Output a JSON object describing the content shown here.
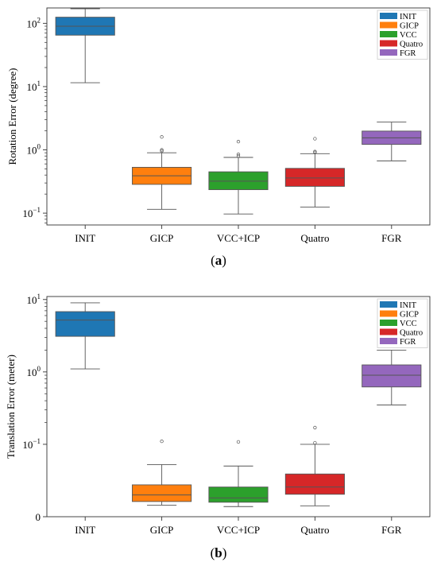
{
  "chart_data": [
    {
      "type": "box",
      "panel_label": "a",
      "ylabel": "Rotation Error (degree)",
      "yscale": "log",
      "ylim": [
        0.065,
        175
      ],
      "y_ticks": [
        {
          "value": 0.1,
          "base": "10",
          "exp": "−1"
        },
        {
          "value": 1,
          "base": "10",
          "exp": "0"
        },
        {
          "value": 10,
          "base": "10",
          "exp": "1"
        },
        {
          "value": 100,
          "base": "10",
          "exp": "2"
        }
      ],
      "legend_position": "top-right",
      "legend": [
        "INIT",
        "GICP",
        "VCC",
        "Quatro",
        "FGR"
      ],
      "categories": [
        "INIT",
        "GICP",
        "VCC+ICP",
        "Quatro",
        "FGR"
      ],
      "colors": [
        "#1f77b4",
        "#ff7f0e",
        "#2ca02c",
        "#d62728",
        "#9467bd"
      ],
      "boxes": [
        {
          "whisker_low": 11.5,
          "q1": 65,
          "median": 90,
          "q3": 125,
          "whisker_high": 170,
          "outliers": []
        },
        {
          "whisker_low": 0.115,
          "q1": 0.285,
          "median": 0.39,
          "q3": 0.53,
          "whisker_high": 0.9,
          "outliers": [
            1.0,
            0.96,
            1.6
          ]
        },
        {
          "whisker_low": 0.097,
          "q1": 0.235,
          "median": 0.32,
          "q3": 0.45,
          "whisker_high": 0.76,
          "outliers": [
            0.8,
            0.85,
            1.35
          ]
        },
        {
          "whisker_low": 0.125,
          "q1": 0.265,
          "median": 0.36,
          "q3": 0.51,
          "whisker_high": 0.87,
          "outliers": [
            0.91,
            0.94,
            1.5
          ]
        },
        {
          "whisker_low": 0.67,
          "q1": 1.22,
          "median": 1.55,
          "q3": 1.98,
          "whisker_high": 2.75,
          "outliers": []
        }
      ]
    },
    {
      "type": "box",
      "panel_label": "b",
      "ylabel": "Translation Error (meter)",
      "yscale": "symlog",
      "linthresh": 0.1,
      "ylim": [
        0,
        11
      ],
      "y_ticks": [
        {
          "value": 0,
          "base": "0",
          "exp": ""
        },
        {
          "value": 0.1,
          "base": "10",
          "exp": "−1"
        },
        {
          "value": 1,
          "base": "10",
          "exp": "0"
        },
        {
          "value": 10,
          "base": "10",
          "exp": "1"
        }
      ],
      "legend_position": "top-right",
      "legend": [
        "INIT",
        "GICP",
        "VCC",
        "Quatro",
        "FGR"
      ],
      "categories": [
        "INIT",
        "GICP",
        "VCC+ICP",
        "Quatro",
        "FGR"
      ],
      "colors": [
        "#1f77b4",
        "#ff7f0e",
        "#2ca02c",
        "#d62728",
        "#9467bd"
      ],
      "boxes": [
        {
          "whisker_low": 1.1,
          "q1": 3.1,
          "median": 5.2,
          "q3": 6.8,
          "whisker_high": 9.0,
          "outliers": []
        },
        {
          "whisker_low": 0.016,
          "q1": 0.021,
          "median": 0.03,
          "q3": 0.044,
          "whisker_high": 0.072,
          "outliers": [
            0.11
          ]
        },
        {
          "whisker_low": 0.014,
          "q1": 0.02,
          "median": 0.026,
          "q3": 0.041,
          "whisker_high": 0.07,
          "outliers": [
            0.108
          ]
        },
        {
          "whisker_low": 0.015,
          "q1": 0.031,
          "median": 0.041,
          "q3": 0.059,
          "whisker_high": 0.1,
          "outliers": [
            0.105,
            0.17
          ]
        },
        {
          "whisker_low": 0.35,
          "q1": 0.62,
          "median": 0.9,
          "q3": 1.25,
          "whisker_high": 2.0,
          "outliers": []
        }
      ]
    }
  ]
}
